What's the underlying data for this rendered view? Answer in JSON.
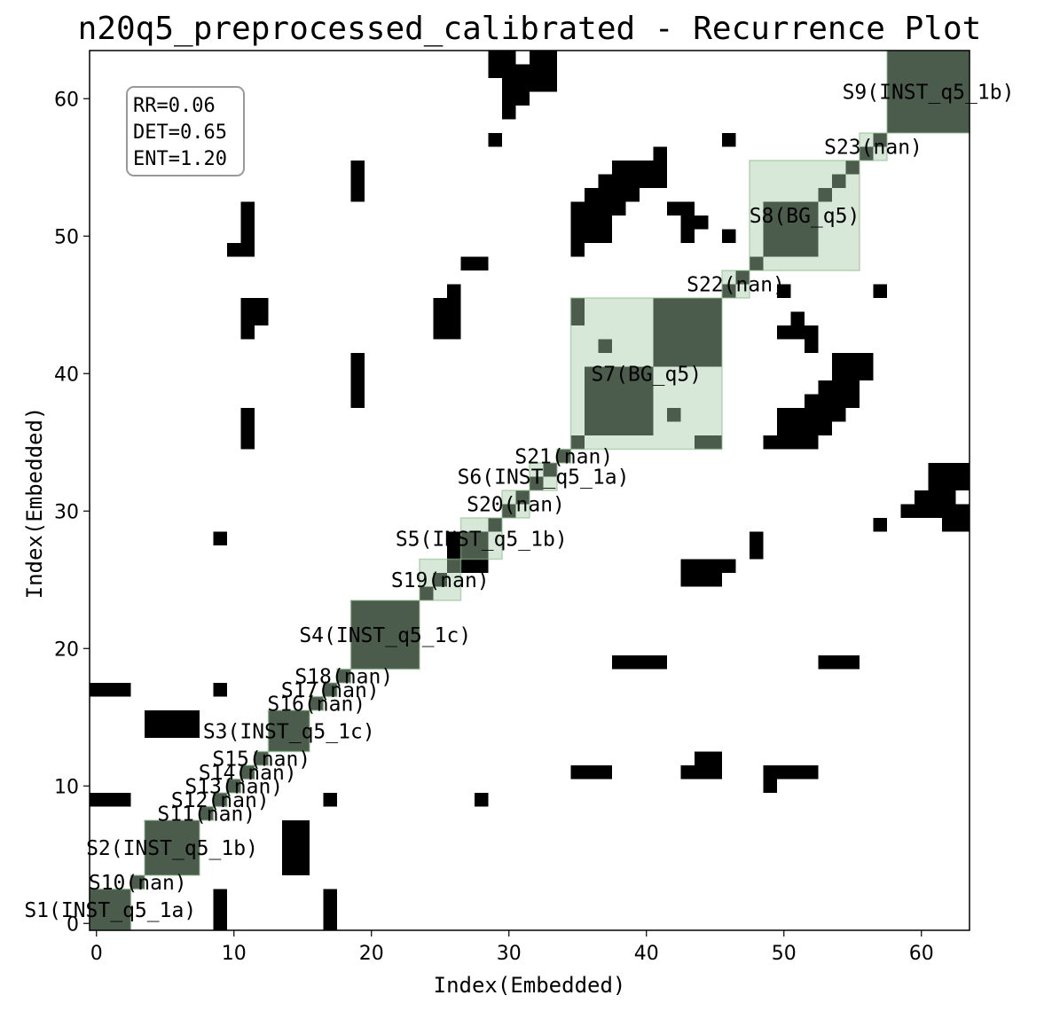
{
  "chart_data": {
    "type": "heatmap",
    "title": "n20q5_preprocessed_calibrated - Recurrence Plot",
    "xlabel": "Index(Embedded)",
    "ylabel": "Index(Embedded)",
    "xlim": [
      -0.5,
      63.5
    ],
    "ylim": [
      -0.5,
      63.5
    ],
    "xticks": [
      0,
      10,
      20,
      30,
      40,
      50,
      60
    ],
    "yticks": [
      0,
      10,
      20,
      30,
      40,
      50,
      60
    ],
    "colors": {
      "recurrence": "#000000",
      "segment_fill": "#a9cba9",
      "segment_edge": "#8fbc8f",
      "background": "#ffffff"
    },
    "metrics": [
      "RR=0.06",
      "DET=0.65",
      "ENT=1.20"
    ],
    "segments": [
      {
        "label": "S1(INST_q5_1a)",
        "start": 0,
        "end": 2
      },
      {
        "label": "S10(nan)",
        "start": 3,
        "end": 3
      },
      {
        "label": "S2(INST_q5_1b)",
        "start": 4,
        "end": 7
      },
      {
        "label": "S11(nan)",
        "start": 8,
        "end": 8
      },
      {
        "label": "S12(nan)",
        "start": 9,
        "end": 9
      },
      {
        "label": "S13(nan)",
        "start": 10,
        "end": 10
      },
      {
        "label": "S14(nan)",
        "start": 11,
        "end": 11
      },
      {
        "label": "S15(nan)",
        "start": 12,
        "end": 12
      },
      {
        "label": "S3(INST_q5_1c)",
        "start": 13,
        "end": 15
      },
      {
        "label": "S16(nan)",
        "start": 16,
        "end": 16
      },
      {
        "label": "S17(nan)",
        "start": 17,
        "end": 17
      },
      {
        "label": "S18(nan)",
        "start": 18,
        "end": 18
      },
      {
        "label": "S4(INST_q5_1c)",
        "start": 19,
        "end": 23
      },
      {
        "label": "S19(nan)",
        "start": 24,
        "end": 26
      },
      {
        "label": "S5(INST_q5_1b)",
        "start": 27,
        "end": 29
      },
      {
        "label": "S20(nan)",
        "start": 30,
        "end": 31
      },
      {
        "label": "S6(INST_q5_1a)",
        "start": 32,
        "end": 33
      },
      {
        "label": "S21(nan)",
        "start": 34,
        "end": 34
      },
      {
        "label": "S7(BG_q5)",
        "start": 35,
        "end": 45
      },
      {
        "label": "S22(nan)",
        "start": 46,
        "end": 47
      },
      {
        "label": "S8(BG_q5)",
        "start": 48,
        "end": 55
      },
      {
        "label": "S23(nan)",
        "start": 56,
        "end": 57
      },
      {
        "label": "S9(INST_q5_1b)",
        "start": 58,
        "end": 63
      }
    ],
    "recurrence_blocks": [
      [
        0,
        2,
        0,
        2
      ],
      [
        4,
        7,
        4,
        7
      ],
      [
        13,
        15,
        13,
        15
      ],
      [
        19,
        23,
        19,
        23
      ],
      [
        26,
        28,
        26,
        28
      ],
      [
        36,
        40,
        36,
        40
      ],
      [
        41,
        45,
        41,
        45
      ],
      [
        49,
        52,
        49,
        52
      ],
      [
        58,
        63,
        58,
        63
      ],
      [
        1,
        2,
        9,
        9
      ],
      [
        9,
        9,
        1,
        2
      ],
      [
        1,
        2,
        17,
        17
      ],
      [
        17,
        17,
        1,
        2
      ],
      [
        4,
        7,
        14,
        15
      ],
      [
        14,
        15,
        4,
        7
      ],
      [
        9,
        9,
        0,
        1
      ],
      [
        0,
        1,
        9,
        9
      ],
      [
        17,
        17,
        0,
        1
      ],
      [
        0,
        1,
        17,
        17
      ],
      [
        9,
        9,
        17,
        17
      ],
      [
        17,
        17,
        9,
        9
      ],
      [
        14,
        15,
        4,
        6
      ],
      [
        4,
        6,
        14,
        15
      ],
      [
        9,
        9,
        28,
        28
      ],
      [
        28,
        28,
        9,
        9
      ],
      [
        17,
        17,
        9,
        9
      ],
      [
        9,
        9,
        17,
        17
      ],
      [
        28,
        28,
        9,
        9
      ],
      [
        11,
        11,
        35,
        37
      ],
      [
        35,
        37,
        11,
        11
      ],
      [
        11,
        11,
        43,
        45
      ],
      [
        43,
        45,
        11,
        11
      ],
      [
        11,
        11,
        50,
        52
      ],
      [
        50,
        52,
        11,
        11
      ],
      [
        10,
        10,
        49,
        49
      ],
      [
        49,
        49,
        10,
        10
      ],
      [
        19,
        19,
        38,
        41
      ],
      [
        38,
        41,
        19,
        19
      ],
      [
        19,
        19,
        53,
        55
      ],
      [
        53,
        55,
        19,
        19
      ],
      [
        25,
        25,
        43,
        45
      ],
      [
        43,
        45,
        25,
        25
      ],
      [
        26,
        26,
        44,
        46
      ],
      [
        44,
        46,
        26,
        26
      ],
      [
        27,
        28,
        48,
        48
      ],
      [
        48,
        48,
        27,
        28
      ],
      [
        29,
        29,
        57,
        57
      ],
      [
        57,
        57,
        29,
        29
      ],
      [
        30,
        30,
        59,
        61
      ],
      [
        59,
        61,
        30,
        30
      ],
      [
        31,
        31,
        60,
        62
      ],
      [
        60,
        62,
        31,
        31
      ],
      [
        32,
        33,
        61,
        63
      ],
      [
        61,
        63,
        32,
        33
      ],
      [
        35,
        36,
        11,
        11
      ],
      [
        11,
        11,
        35,
        36
      ],
      [
        35,
        35,
        49,
        51
      ],
      [
        49,
        51,
        35,
        35
      ],
      [
        35,
        37,
        50,
        52
      ],
      [
        50,
        52,
        35,
        37
      ],
      [
        36,
        37,
        52,
        53
      ],
      [
        52,
        53,
        36,
        37
      ],
      [
        38,
        40,
        54,
        55
      ],
      [
        54,
        55,
        38,
        40
      ],
      [
        38,
        41,
        19,
        19
      ],
      [
        19,
        19,
        38,
        41
      ],
      [
        43,
        44,
        25,
        26
      ],
      [
        25,
        26,
        43,
        44
      ],
      [
        44,
        45,
        26,
        26
      ],
      [
        26,
        26,
        44,
        45
      ],
      [
        42,
        42,
        37,
        37
      ],
      [
        37,
        37,
        42,
        42
      ],
      [
        45,
        45,
        35,
        35
      ],
      [
        35,
        35,
        45,
        45
      ],
      [
        46,
        46,
        57,
        57
      ],
      [
        57,
        57,
        46,
        46
      ],
      [
        48,
        48,
        27,
        28
      ],
      [
        49,
        50,
        11,
        11
      ],
      [
        11,
        11,
        49,
        50
      ],
      [
        50,
        50,
        43,
        43
      ],
      [
        43,
        43,
        50,
        50
      ],
      [
        50,
        51,
        36,
        37
      ],
      [
        36,
        37,
        50,
        51
      ],
      [
        52,
        53,
        37,
        38
      ],
      [
        37,
        38,
        52,
        53
      ],
      [
        53,
        54,
        38,
        39
      ],
      [
        38,
        39,
        53,
        54
      ],
      [
        54,
        55,
        40,
        41
      ],
      [
        40,
        41,
        54,
        55
      ],
      [
        55,
        56,
        41,
        41
      ],
      [
        41,
        41,
        55,
        56
      ],
      [
        57,
        57,
        46,
        46
      ],
      [
        61,
        62,
        31,
        33
      ],
      [
        31,
        33,
        61,
        62
      ],
      [
        62,
        63,
        32,
        33
      ],
      [
        32,
        33,
        62,
        63
      ],
      [
        54,
        55,
        19,
        19
      ],
      [
        19,
        19,
        54,
        55
      ],
      [
        44,
        45,
        11,
        11
      ],
      [
        11,
        11,
        44,
        45
      ],
      [
        49,
        49,
        35,
        35
      ],
      [
        50,
        51,
        35,
        35
      ],
      [
        35,
        35,
        50,
        51
      ],
      [
        35,
        35,
        44,
        45
      ],
      [
        44,
        45,
        35,
        35
      ],
      [
        12,
        12,
        44,
        45
      ],
      [
        44,
        45,
        12,
        12
      ],
      [
        37,
        37,
        53,
        54
      ],
      [
        53,
        54,
        37,
        37
      ],
      [
        38,
        38,
        55,
        55
      ],
      [
        55,
        55,
        38,
        38
      ],
      [
        39,
        40,
        55,
        55
      ],
      [
        55,
        55,
        39,
        40
      ],
      [
        43,
        44,
        51,
        51
      ],
      [
        51,
        51,
        43,
        44
      ],
      [
        42,
        43,
        52,
        52
      ],
      [
        52,
        52,
        42,
        43
      ],
      [
        57,
        57,
        46,
        46
      ],
      [
        29,
        29,
        57,
        57
      ],
      [
        50,
        50,
        46,
        46
      ],
      [
        46,
        46,
        50,
        50
      ],
      [
        54,
        56,
        40,
        41
      ],
      [
        29,
        30,
        62,
        63
      ],
      [
        62,
        63,
        29,
        30
      ],
      [
        32,
        32,
        62,
        62
      ],
      [
        31,
        31,
        62,
        62
      ],
      [
        61,
        61,
        31,
        31
      ],
      [
        62,
        62,
        31,
        31
      ],
      [
        60,
        61,
        30,
        30
      ],
      [
        62,
        63,
        33,
        33
      ]
    ]
  }
}
